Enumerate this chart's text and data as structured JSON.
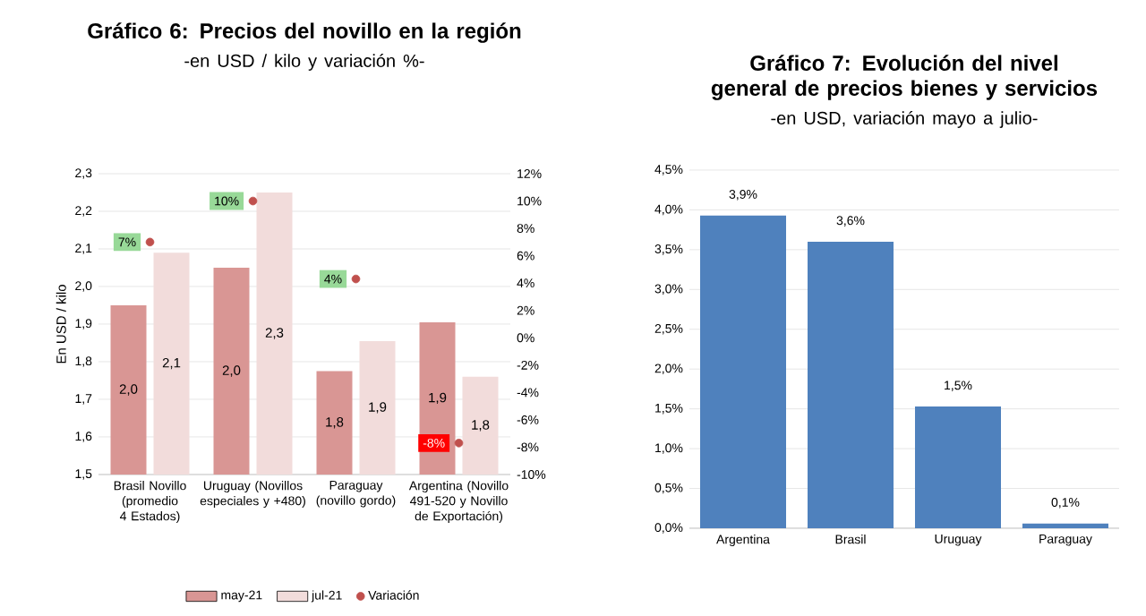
{
  "chart_data": [
    {
      "type": "bar",
      "title": "Gráfico 6: Precios del novillo en la región",
      "subtitle": "-en USD / kilo y variación %-",
      "ylabel": "En USD / kilo",
      "categories": [
        "Brasil Novillo (promedio 4 Estados)",
        "Uruguay (Novillos especiales y +480)",
        "Paraguay (novillo gordo)",
        "Argentina (Novillo 491-520 y Novillo de Exportación)"
      ],
      "series": [
        {
          "name": "may-21",
          "color": "#d99694",
          "values": [
            1.95,
            2.05,
            1.775,
            1.905
          ],
          "value_labels": [
            "2,0",
            "2,0",
            "1,8",
            "1,9"
          ]
        },
        {
          "name": "jul-21",
          "color": "#f2dcdb",
          "values": [
            2.09,
            2.25,
            1.855,
            1.76
          ],
          "value_labels": [
            "2,1",
            "2,3",
            "1,9",
            "1,8"
          ]
        },
        {
          "name": "Variación",
          "type": "scatter",
          "axis": "y2",
          "color": "#c0504d",
          "values": [
            7,
            10,
            4.3,
            -7.7
          ],
          "value_labels": [
            "7%",
            "10%",
            "4%",
            "-8%"
          ]
        }
      ],
      "ylim": [
        1.5,
        2.3
      ],
      "yticks": [
        {
          "value": 1.5,
          "label": "1,5"
        },
        {
          "value": 1.6,
          "label": "1,6"
        },
        {
          "value": 1.7,
          "label": "1,7"
        },
        {
          "value": 1.8,
          "label": "1,8"
        },
        {
          "value": 1.9,
          "label": "1,9"
        },
        {
          "value": 2.0,
          "label": "2,0"
        },
        {
          "value": 2.1,
          "label": "2,1"
        },
        {
          "value": 2.2,
          "label": "2,2"
        },
        {
          "value": 2.3,
          "label": "2,3"
        }
      ],
      "y2lim": [
        -10,
        12
      ],
      "y2ticks": [
        {
          "value": -10,
          "label": "-10%"
        },
        {
          "value": -8,
          "label": "-8%"
        },
        {
          "value": -6,
          "label": "-6%"
        },
        {
          "value": -4,
          "label": "-4%"
        },
        {
          "value": -2,
          "label": "-2%"
        },
        {
          "value": 0,
          "label": "0%"
        },
        {
          "value": 2,
          "label": "2%"
        },
        {
          "value": 4,
          "label": "4%"
        },
        {
          "value": 6,
          "label": "6%"
        },
        {
          "value": 8,
          "label": "8%"
        },
        {
          "value": 10,
          "label": "10%"
        },
        {
          "value": 12,
          "label": "12%"
        }
      ],
      "grid": "y",
      "legend": "bottom"
    },
    {
      "type": "bar",
      "title": "Gráfico 7: Evolución del nivel general de precios bienes y servicios",
      "subtitle": "-en USD, variación mayo a julio-",
      "categories": [
        "Argentina",
        "Brasil",
        "Uruguay",
        "Paraguay"
      ],
      "values": [
        3.93,
        3.6,
        1.53,
        0.06
      ],
      "value_labels": [
        "3,9%",
        "3,6%",
        "1,5%",
        "0,1%"
      ],
      "color": "#4f81bd",
      "ylim": [
        0,
        4.5
      ],
      "yticks": [
        {
          "value": 0,
          "label": "0,0%"
        },
        {
          "value": 0.5,
          "label": "0,5%"
        },
        {
          "value": 1.0,
          "label": "1,0%"
        },
        {
          "value": 1.5,
          "label": "1,5%"
        },
        {
          "value": 2.0,
          "label": "2,0%"
        },
        {
          "value": 2.5,
          "label": "2,5%"
        },
        {
          "value": 3.0,
          "label": "3,0%"
        },
        {
          "value": 3.5,
          "label": "3,5%"
        },
        {
          "value": 4.0,
          "label": "4,0%"
        },
        {
          "value": 4.5,
          "label": "4,5%"
        }
      ],
      "grid": "y"
    }
  ]
}
